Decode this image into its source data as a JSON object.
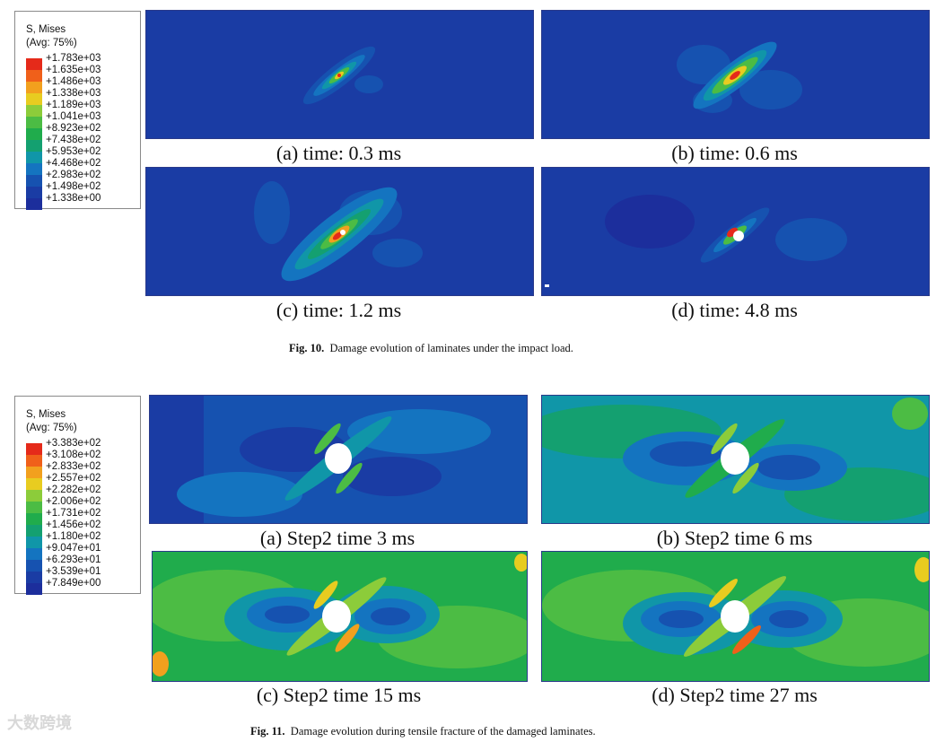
{
  "fig10": {
    "legend": {
      "title1": "S, Mises",
      "title2": "(Avg: 75%)",
      "values": [
        "+1.783e+03",
        "+1.635e+03",
        "+1.486e+03",
        "+1.338e+03",
        "+1.189e+03",
        "+1.041e+03",
        "+8.923e+02",
        "+7.438e+02",
        "+5.953e+02",
        "+4.468e+02",
        "+2.983e+02",
        "+1.498e+02",
        "+1.338e+00"
      ]
    },
    "panels": [
      {
        "caption": "(a) time: 0.3 ms"
      },
      {
        "caption": "(b) time: 0.6 ms"
      },
      {
        "caption": "(c) time: 1.2 ms"
      },
      {
        "caption": "(d) time: 4.8 ms"
      }
    ],
    "figure_label": "Fig. 10.",
    "figure_caption": "Damage evolution of laminates under the impact load."
  },
  "fig11": {
    "legend": {
      "title1": "S, Mises",
      "title2": "(Avg: 75%)",
      "values": [
        "+3.383e+02",
        "+3.108e+02",
        "+2.833e+02",
        "+2.557e+02",
        "+2.282e+02",
        "+2.006e+02",
        "+1.731e+02",
        "+1.456e+02",
        "+1.180e+02",
        "+9.047e+01",
        "+6.293e+01",
        "+3.539e+01",
        "+7.849e+00"
      ]
    },
    "panels": [
      {
        "caption": "(a) Step2 time 3 ms"
      },
      {
        "caption": "(b) Step2 time 6 ms"
      },
      {
        "caption": "(c) Step2 time 15 ms"
      },
      {
        "caption": "(d) Step2 time 27 ms"
      }
    ],
    "figure_label": "Fig. 11.",
    "figure_caption": "Damage evolution during tensile fracture of the damaged laminates."
  },
  "colors": {
    "contour_scale": [
      "#e52a1a",
      "#f0601a",
      "#f2a01e",
      "#e8cc20",
      "#8ccc3a",
      "#4cbc44",
      "#20ac4c",
      "#14a070",
      "#1096a8",
      "#1474c0",
      "#1652b0",
      "#1a3ca4",
      "#1c2e9c"
    ],
    "background_blue": "#1a3ca4"
  },
  "watermark": "大数跨境"
}
